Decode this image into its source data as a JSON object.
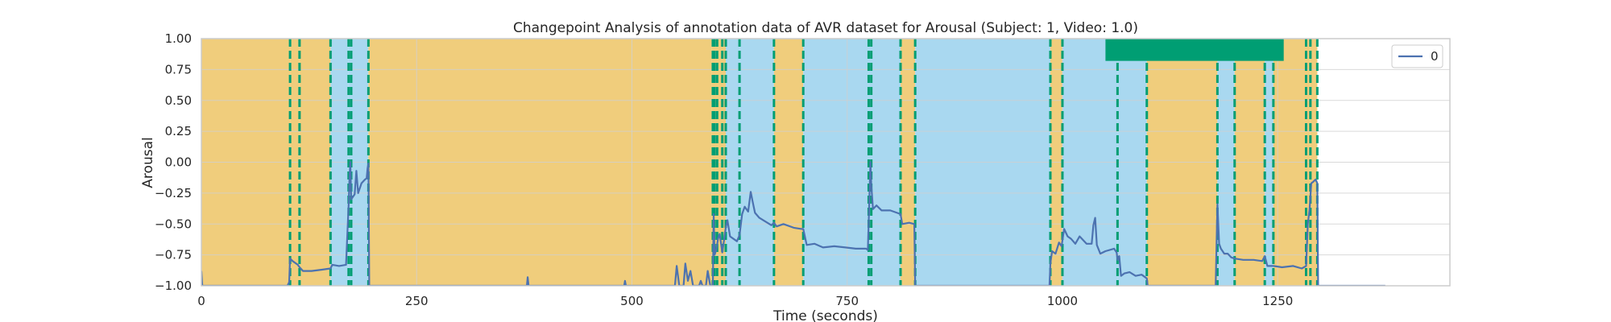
{
  "chart_data": {
    "type": "line",
    "title": "Changepoint Analysis of annotation data of AVR dataset for Arousal (Subject: 1, Video: 1.0)",
    "xlabel": "Time (seconds)",
    "ylabel": "Arousal",
    "xlim": [
      0,
      1450
    ],
    "ylim": [
      -1.0,
      1.0
    ],
    "xticks": [
      0,
      250,
      500,
      750,
      1000,
      1250
    ],
    "xtick_labels": [
      "0",
      "250",
      "500",
      "750",
      "1000",
      "1250"
    ],
    "yticks": [
      -1.0,
      -0.75,
      -0.5,
      -0.25,
      0.0,
      0.25,
      0.5,
      0.75,
      1.0
    ],
    "ytick_labels": [
      "−1.00",
      "−0.75",
      "−0.50",
      "−0.25",
      "0.00",
      "0.25",
      "0.50",
      "0.75",
      "1.00"
    ],
    "grid": true,
    "legend": {
      "placement": "top-right",
      "entries": [
        "0"
      ]
    },
    "colors": {
      "series": "#4c72b0",
      "segment_a": "#f0cd7c",
      "segment_b": "#a9d8f0",
      "changepoint": "#009e73",
      "grid": "#cfcfcf"
    },
    "regions": [
      {
        "x0": 0,
        "x1": 103,
        "color": "segment_a"
      },
      {
        "x0": 103,
        "x1": 114,
        "color": "segment_a"
      },
      {
        "x0": 114,
        "x1": 150,
        "color": "segment_a"
      },
      {
        "x0": 150,
        "x1": 171,
        "color": "segment_b"
      },
      {
        "x0": 171,
        "x1": 194,
        "color": "segment_b"
      },
      {
        "x0": 194,
        "x1": 593,
        "color": "segment_a"
      },
      {
        "x0": 593,
        "x1": 609,
        "color": "segment_a"
      },
      {
        "x0": 609,
        "x1": 625,
        "color": "segment_b"
      },
      {
        "x0": 625,
        "x1": 665,
        "color": "segment_b"
      },
      {
        "x0": 665,
        "x1": 699,
        "color": "segment_a"
      },
      {
        "x0": 699,
        "x1": 775,
        "color": "segment_b"
      },
      {
        "x0": 775,
        "x1": 812,
        "color": "segment_b"
      },
      {
        "x0": 812,
        "x1": 829,
        "color": "segment_a"
      },
      {
        "x0": 829,
        "x1": 986,
        "color": "segment_b"
      },
      {
        "x0": 986,
        "x1": 1000,
        "color": "segment_a"
      },
      {
        "x0": 1000,
        "x1": 1064,
        "color": "segment_b"
      },
      {
        "x0": 1064,
        "x1": 1098,
        "color": "segment_b"
      },
      {
        "x0": 1098,
        "x1": 1180,
        "color": "segment_a"
      },
      {
        "x0": 1180,
        "x1": 1200,
        "color": "segment_b"
      },
      {
        "x0": 1200,
        "x1": 1235,
        "color": "segment_a"
      },
      {
        "x0": 1235,
        "x1": 1245,
        "color": "segment_b"
      },
      {
        "x0": 1245,
        "x1": 1288,
        "color": "segment_a"
      },
      {
        "x0": 1288,
        "x1": 1296,
        "color": "segment_a"
      }
    ],
    "changepoints": [
      103,
      114,
      150,
      171,
      174,
      194,
      594,
      596,
      599,
      605,
      609,
      625,
      665,
      699,
      775,
      778,
      812,
      829,
      986,
      1000,
      1064,
      1098,
      1180,
      1200,
      1235,
      1245,
      1283,
      1288,
      1296
    ],
    "overlay_block": {
      "x0": 1050,
      "x1": 1257,
      "y0": 0.82,
      "y1": 1.0,
      "color": "changepoint"
    },
    "series": [
      {
        "name": "0",
        "points": [
          [
            0,
            -0.88
          ],
          [
            1,
            -1.0
          ],
          [
            100,
            -1.0
          ],
          [
            102,
            -0.97
          ],
          [
            103,
            -0.78
          ],
          [
            106,
            -0.8
          ],
          [
            112,
            -0.83
          ],
          [
            114,
            -0.85
          ],
          [
            118,
            -0.88
          ],
          [
            128,
            -0.88
          ],
          [
            140,
            -0.87
          ],
          [
            150,
            -0.86
          ],
          [
            152,
            -0.83
          ],
          [
            160,
            -0.84
          ],
          [
            168,
            -0.83
          ],
          [
            171,
            -0.35
          ],
          [
            172,
            -0.12
          ],
          [
            173,
            0.0
          ],
          [
            174,
            -0.3
          ],
          [
            178,
            -0.26
          ],
          [
            180,
            -0.07
          ],
          [
            182,
            -0.25
          ],
          [
            186,
            -0.17
          ],
          [
            190,
            -0.14
          ],
          [
            192,
            -0.13
          ],
          [
            193,
            -0.05
          ],
          [
            194,
            -0.01
          ],
          [
            195,
            -1.0
          ],
          [
            378,
            -1.0
          ],
          [
            379,
            -0.93
          ],
          [
            380,
            -1.0
          ],
          [
            491,
            -1.0
          ],
          [
            492,
            -0.96
          ],
          [
            493,
            -1.0
          ],
          [
            550,
            -1.0
          ],
          [
            552,
            -0.84
          ],
          [
            555,
            -1.0
          ],
          [
            560,
            -1.0
          ],
          [
            562,
            -0.82
          ],
          [
            565,
            -0.96
          ],
          [
            568,
            -0.88
          ],
          [
            571,
            -1.0
          ],
          [
            578,
            -1.0
          ],
          [
            580,
            -0.96
          ],
          [
            582,
            -1.0
          ],
          [
            586,
            -1.0
          ],
          [
            588,
            -0.88
          ],
          [
            591,
            -1.0
          ],
          [
            594,
            -1.0
          ],
          [
            595,
            -0.42
          ],
          [
            596,
            -0.75
          ],
          [
            598,
            -0.71
          ],
          [
            600,
            -0.62
          ],
          [
            602,
            -0.58
          ],
          [
            605,
            -0.73
          ],
          [
            607,
            -0.63
          ],
          [
            609,
            -0.53
          ],
          [
            611,
            -0.47
          ],
          [
            614,
            -0.6
          ],
          [
            618,
            -0.62
          ],
          [
            622,
            -0.64
          ],
          [
            625,
            -0.59
          ],
          [
            628,
            -0.42
          ],
          [
            631,
            -0.36
          ],
          [
            635,
            -0.4
          ],
          [
            638,
            -0.24
          ],
          [
            640,
            -0.31
          ],
          [
            643,
            -0.41
          ],
          [
            648,
            -0.45
          ],
          [
            655,
            -0.48
          ],
          [
            662,
            -0.51
          ],
          [
            665,
            -0.49
          ],
          [
            668,
            -0.52
          ],
          [
            676,
            -0.5
          ],
          [
            688,
            -0.53
          ],
          [
            697,
            -0.54
          ],
          [
            699,
            -0.54
          ],
          [
            703,
            -0.67
          ],
          [
            712,
            -0.66
          ],
          [
            722,
            -0.69
          ],
          [
            735,
            -0.68
          ],
          [
            748,
            -0.69
          ],
          [
            760,
            -0.7
          ],
          [
            772,
            -0.7
          ],
          [
            774,
            -0.71
          ],
          [
            775,
            -0.5
          ],
          [
            777,
            0.0
          ],
          [
            778,
            -0.19
          ],
          [
            780,
            -0.38
          ],
          [
            784,
            -0.35
          ],
          [
            790,
            -0.39
          ],
          [
            800,
            -0.39
          ],
          [
            808,
            -0.41
          ],
          [
            812,
            -0.42
          ],
          [
            814,
            -0.5
          ],
          [
            822,
            -0.49
          ],
          [
            828,
            -0.5
          ],
          [
            829,
            -1.0
          ],
          [
            985,
            -1.0
          ],
          [
            986,
            -0.82
          ],
          [
            988,
            -0.72
          ],
          [
            992,
            -0.74
          ],
          [
            996,
            -0.65
          ],
          [
            999,
            -0.68
          ],
          [
            1002,
            -0.54
          ],
          [
            1006,
            -0.6
          ],
          [
            1010,
            -0.62
          ],
          [
            1015,
            -0.66
          ],
          [
            1020,
            -0.6
          ],
          [
            1028,
            -0.66
          ],
          [
            1034,
            -0.66
          ],
          [
            1036,
            -0.51
          ],
          [
            1038,
            -0.45
          ],
          [
            1040,
            -0.67
          ],
          [
            1044,
            -0.74
          ],
          [
            1050,
            -0.72
          ],
          [
            1060,
            -0.7
          ],
          [
            1063,
            -0.73
          ],
          [
            1064,
            -0.79
          ],
          [
            1066,
            -0.76
          ],
          [
            1068,
            -0.92
          ],
          [
            1072,
            -0.9
          ],
          [
            1078,
            -0.89
          ],
          [
            1085,
            -0.92
          ],
          [
            1092,
            -0.91
          ],
          [
            1098,
            -0.94
          ],
          [
            1099,
            -1.0
          ],
          [
            1178,
            -1.0
          ],
          [
            1180,
            -0.34
          ],
          [
            1182,
            -0.66
          ],
          [
            1184,
            -0.7
          ],
          [
            1188,
            -0.74
          ],
          [
            1192,
            -0.74
          ],
          [
            1196,
            -0.77
          ],
          [
            1200,
            -0.78
          ],
          [
            1210,
            -0.79
          ],
          [
            1222,
            -0.79
          ],
          [
            1232,
            -0.8
          ],
          [
            1235,
            -0.76
          ],
          [
            1238,
            -0.84
          ],
          [
            1245,
            -0.84
          ],
          [
            1255,
            -0.85
          ],
          [
            1268,
            -0.84
          ],
          [
            1278,
            -0.86
          ],
          [
            1283,
            -0.84
          ],
          [
            1285,
            -0.5
          ],
          [
            1287,
            -0.38
          ],
          [
            1289,
            -0.17
          ],
          [
            1291,
            -0.16
          ],
          [
            1294,
            -0.14
          ],
          [
            1296,
            -0.17
          ],
          [
            1297,
            -1.0
          ],
          [
            1375,
            -1.0
          ]
        ]
      }
    ]
  }
}
